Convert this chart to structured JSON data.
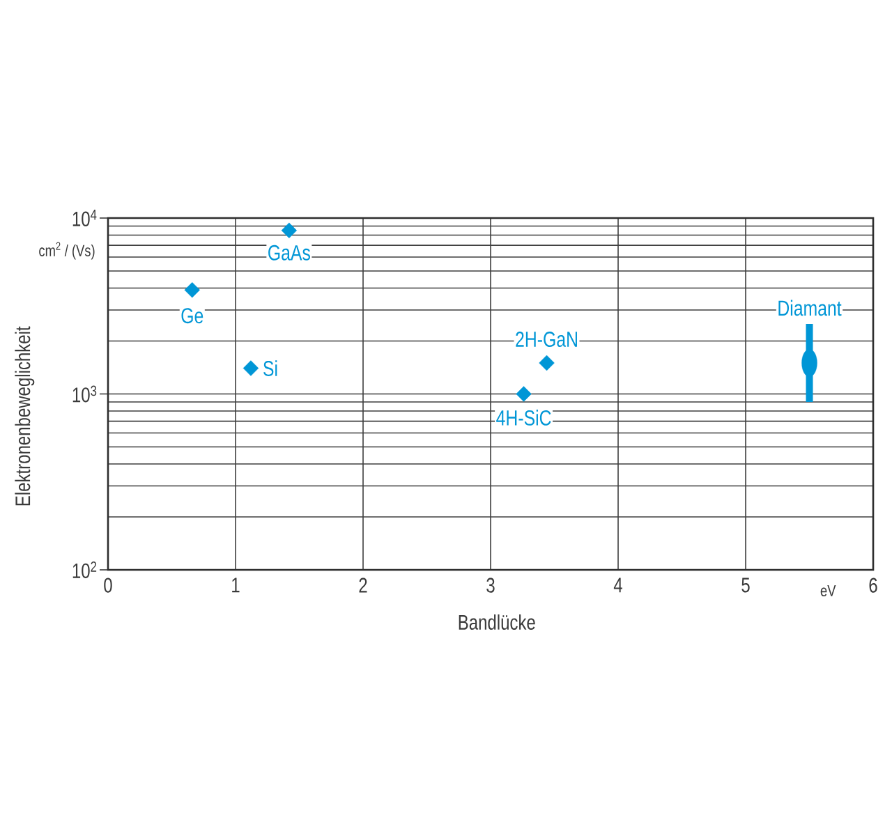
{
  "chart_data": {
    "type": "scatter",
    "xlabel": "Bandlücke",
    "ylabel": "Elektronenbeweglichkeit",
    "x": [
      0.66,
      1.12,
      1.42,
      3.26,
      3.44,
      5.5
    ],
    "values": [
      3900,
      1400,
      8500,
      1000,
      1500,
      1500
    ],
    "errors": [
      null,
      null,
      null,
      null,
      null,
      [
        900,
        2500
      ]
    ],
    "color": "#0096d6",
    "marker": "diamond",
    "log": "y",
    "xlim": [
      0,
      6
    ],
    "ylim": [
      100,
      10000
    ],
    "xticks": [
      0,
      1,
      2,
      3,
      4,
      5,
      6
    ],
    "yticks": [
      {
        "value": 100,
        "label": "10$^{2}$"
      },
      {
        "value": 1000,
        "label": "10$^{3}$"
      },
      {
        "value": 10000,
        "label": "10$^{4}$"
      }
    ],
    "grid": true,
    "annotations": [
      {
        "text": "Ge",
        "x": 0.66,
        "y": 3900
      },
      {
        "text": "Si",
        "x": 1.12,
        "y": 1400
      },
      {
        "text": "GaAs",
        "x": 1.42,
        "y": 8500
      },
      {
        "text": "4H-SiC",
        "x": 3.26,
        "y": 1000
      },
      {
        "text": "2H-GaN",
        "x": 3.44,
        "y": 1500
      },
      {
        "text": "Diamant",
        "x": 5.5,
        "y": 1500
      },
      "cm$^{2}$ / (Vs)",
      "eV"
    ]
  }
}
